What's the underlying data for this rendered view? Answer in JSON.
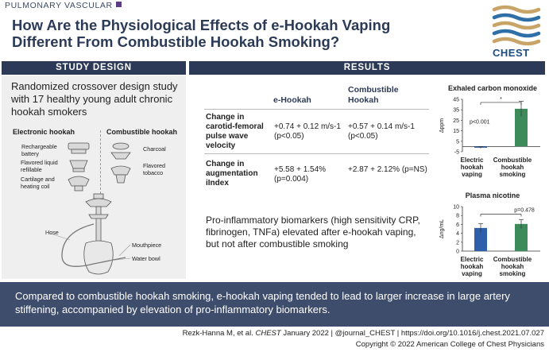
{
  "header": {
    "category": "PULMONARY VASCULAR",
    "title": "How Are the Physiological Effects of e-Hookah Vaping Different From Combustible Hookah Smoking?",
    "logo_text": "CHEST"
  },
  "study_design": {
    "heading": "STUDY DESIGN",
    "description": "Randomized crossover design study with 17 healthy young adult chronic hookah smokers",
    "electronic": {
      "label": "Electronic hookah",
      "parts": [
        "Rechargeable battery",
        "Flavored liquid refillable",
        "Cartilage and heating coil"
      ]
    },
    "combustible": {
      "label": "Combustible hookah",
      "parts": [
        "Charcoal",
        "Flavored tobacco"
      ]
    },
    "hookah_parts": [
      "Hose",
      "Mouthpiece",
      "Water bowl"
    ]
  },
  "results": {
    "heading": "RESULTS",
    "col_ehookah": "e-Hookah",
    "col_combustible": "Combustible Hookah",
    "rows": [
      {
        "label": "Change in carotid-femoral pulse wave velocity",
        "ehookah": "+0.74 + 0.12 m/s-1 (p<0.05)",
        "combustible": "+0.57 + 0.14 m/s-1 (p<0.05)"
      },
      {
        "label": "Change in augmentation iIndex",
        "ehookah": "+5.58 + 1.54% (p=0.004)",
        "combustible": "+2.87 + 2.12% (p=NS)"
      }
    ],
    "biomarkers": "Pro-inflammatory biomarkers (high sensitivity CRP, fibrinogen, TNFa) elevated after e-hookah vaping, but not after combustible smoking"
  },
  "chart_data": [
    {
      "type": "bar",
      "title": "Exhaled carbon monoxide",
      "ylabel": "Δppm",
      "categories": [
        "Electric hookah vaping",
        "Combustible hookah smoking"
      ],
      "values": [
        -1,
        36
      ],
      "errors": [
        0.8,
        7
      ],
      "yticks": [
        -5,
        5,
        15,
        25,
        35,
        45
      ],
      "ylim": [
        -5,
        45
      ],
      "annotations": [
        "p<0.001",
        "*"
      ],
      "colors": [
        "#2e5fa8",
        "#3d8b5a"
      ]
    },
    {
      "type": "bar",
      "title": "Plasma nicotine",
      "ylabel": "Δng/mL",
      "categories": [
        "Electric hookah vaping",
        "Combustible hookah smoking"
      ],
      "values": [
        5.2,
        6.1
      ],
      "errors": [
        1.0,
        1.0
      ],
      "yticks": [
        0,
        2,
        4,
        6,
        8,
        10
      ],
      "ylim": [
        0,
        10
      ],
      "annotations": [
        "p=0.478"
      ],
      "colors": [
        "#2e5fa8",
        "#3d8b5a"
      ]
    }
  ],
  "conclusion": "Compared to combustible hookah smoking, e-hookah vaping tended to lead to larger increase in large artery stiffening, accompanied by elevation of pro-inflammatory biomarkers.",
  "citation": {
    "authors": "Rezk-Hanna M, et al.",
    "journal": "CHEST",
    "date": "January 2022",
    "sep": "|",
    "handle": "@journal_CHEST",
    "doi": "https://doi.org/10.1016/j.chest.2021.07.027",
    "copyright": "Copyright © 2022 American College of Chest Physicians"
  }
}
